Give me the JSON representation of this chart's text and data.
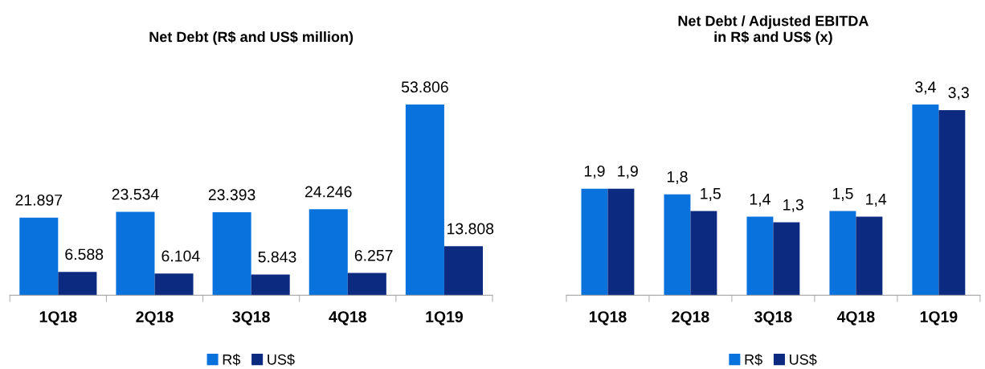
{
  "chart_data": [
    {
      "type": "bar",
      "title": "Net Debt (R$ and US$ million)",
      "categories": [
        "1Q18",
        "2Q18",
        "3Q18",
        "4Q18",
        "1Q19"
      ],
      "legend": "bottom",
      "grid": false,
      "series": [
        {
          "name": "R$",
          "color": "#0a72dc",
          "values": [
            21897,
            23534,
            23393,
            24246,
            53806
          ],
          "value_labels": [
            "21.897",
            "23.534",
            "23.393",
            "24.246",
            "53.806"
          ]
        },
        {
          "name": "US$",
          "color": "#0b2a80",
          "values": [
            6588,
            6104,
            5843,
            6257,
            13808
          ],
          "value_labels": [
            "6.588",
            "6.104",
            "5.843",
            "6.257",
            "13.808"
          ]
        }
      ]
    },
    {
      "type": "bar",
      "title": "Net Debt / Adjusted EBITDA\nin R$ and US$ (x)",
      "categories": [
        "1Q18",
        "2Q18",
        "3Q18",
        "4Q18",
        "1Q19"
      ],
      "legend": "bottom",
      "grid": false,
      "series": [
        {
          "name": "R$",
          "color": "#0a72dc",
          "values": [
            1.9,
            1.8,
            1.4,
            1.5,
            3.4
          ],
          "value_labels": [
            "1,9",
            "1,8",
            "1,4",
            "1,5",
            "3,4"
          ]
        },
        {
          "name": "US$",
          "color": "#0b2a80",
          "values": [
            1.9,
            1.5,
            1.3,
            1.4,
            3.3
          ],
          "value_labels": [
            "1,9",
            "1,5",
            "1,3",
            "1,4",
            "3,3"
          ]
        }
      ]
    }
  ]
}
